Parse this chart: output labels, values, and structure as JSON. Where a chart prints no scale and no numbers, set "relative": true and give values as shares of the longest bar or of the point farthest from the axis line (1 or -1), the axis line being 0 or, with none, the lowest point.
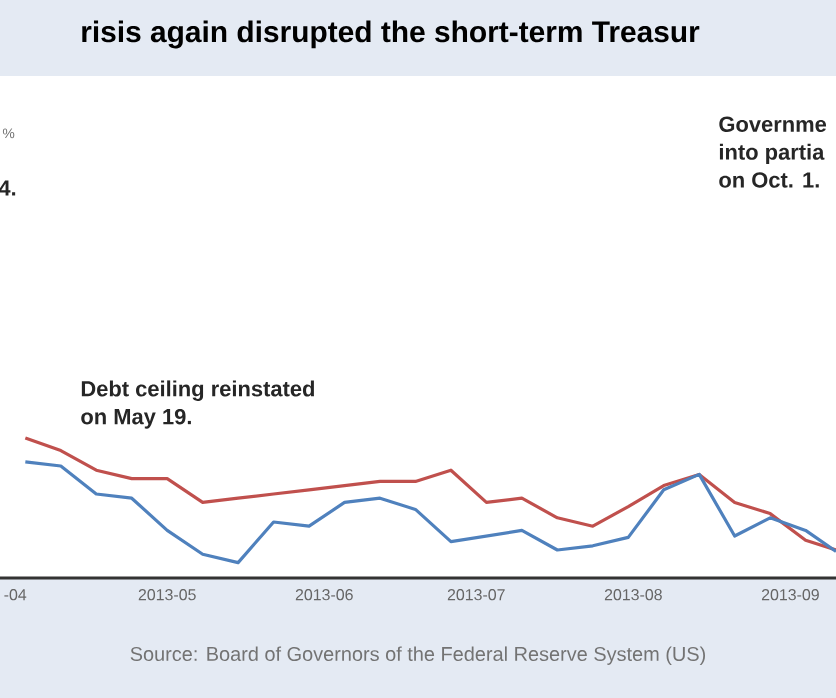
{
  "chart_data": {
    "type": "line",
    "title": "risis again disrupted the short-term Treasur",
    "relative": true,
    "xlim": [
      "2013-03-29",
      "2013-09-10"
    ],
    "xticks": [
      {
        "value": "2013-04-01",
        "label": "-04"
      },
      {
        "value": "2013-05-01",
        "label": "2013-05"
      },
      {
        "value": "2013-06-01",
        "label": "2013-06"
      },
      {
        "value": "2013-07-01",
        "label": "2013-07"
      },
      {
        "value": "2013-08-01",
        "label": "2013-08"
      },
      {
        "value": "2013-09-01",
        "label": "2013-09"
      }
    ],
    "x": [
      "2013-04-03",
      "2013-04-10",
      "2013-04-17",
      "2013-04-24",
      "2013-05-01",
      "2013-05-08",
      "2013-05-15",
      "2013-05-22",
      "2013-05-29",
      "2013-06-05",
      "2013-06-12",
      "2013-06-19",
      "2013-06-26",
      "2013-07-03",
      "2013-07-10",
      "2013-07-17",
      "2013-07-24",
      "2013-07-31",
      "2013-08-07",
      "2013-08-14",
      "2013-08-21",
      "2013-08-28",
      "2013-09-04",
      "2013-09-10"
    ],
    "series": [
      {
        "color": "#c0504d",
        "values": [
          1,
          0.91,
          0.77,
          0.71,
          0.71,
          0.54,
          0.57,
          0.6,
          0.63,
          0.66,
          0.69,
          0.69,
          0.77,
          0.54,
          0.57,
          0.43,
          0.37,
          0.51,
          0.66,
          0.74,
          0.54,
          0.46,
          0.27,
          0.2
        ]
      },
      {
        "color": "#4f81bd",
        "values": [
          0.83,
          0.8,
          0.6,
          0.57,
          0.34,
          0.17,
          0.11,
          0.4,
          0.37,
          0.54,
          0.57,
          0.49,
          0.26,
          0.3,
          0.34,
          0.2,
          0.23,
          0.29,
          0.63,
          0.74,
          0.3,
          0.43,
          0.34,
          0.19
        ]
      }
    ],
    "annotations": [
      "%",
      "4.",
      "Debt ceiling reinstated on May 19.",
      "Governme into partia on Oct. 1.",
      "Source: Board of Governors of the Federal Reserve System (US)"
    ],
    "grid": false,
    "marker": "none",
    "line_style": "solid"
  }
}
